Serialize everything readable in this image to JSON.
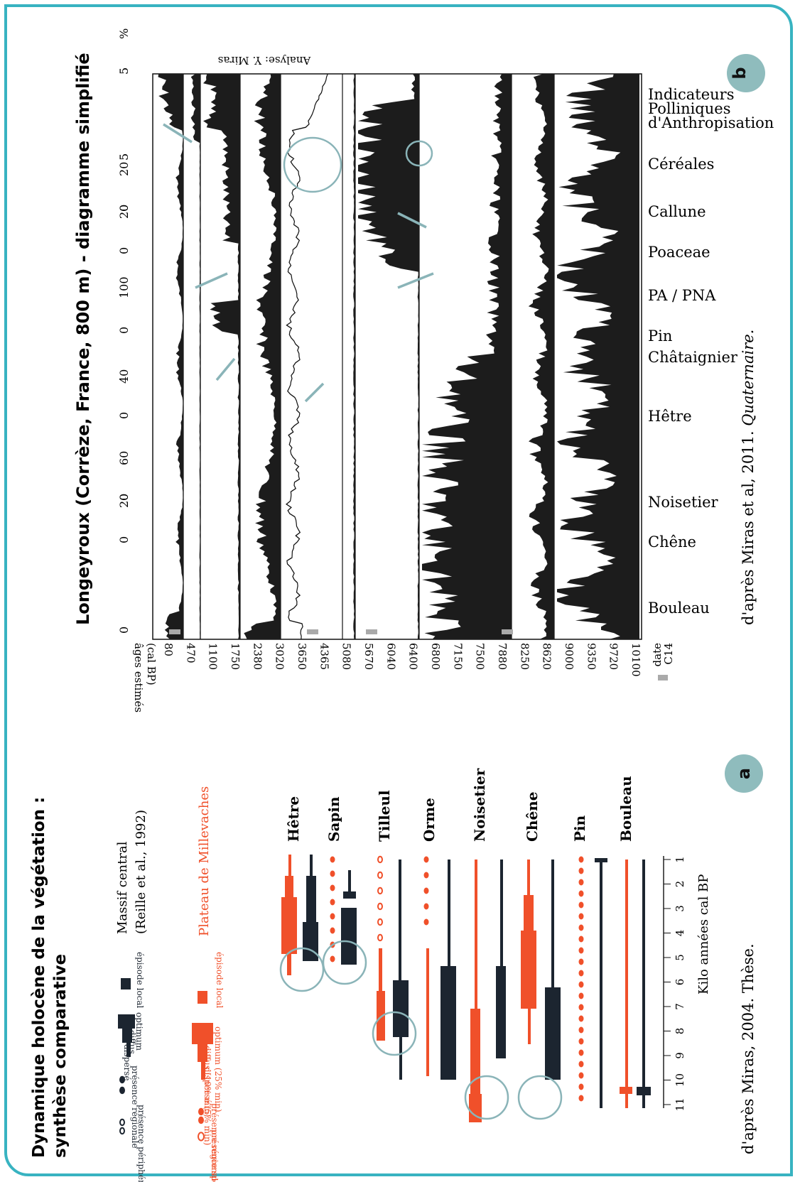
{
  "panel_b": {
    "badge": "b",
    "title": "Longeyroux (Corrèze, France, 800 m) - diagramme simplifié",
    "analyst": "Analyse: Y. Miras",
    "age_axis_label": [
      "âges estimés",
      "(cal BP)"
    ],
    "age_ticks": [
      "80",
      "470",
      "1100",
      "1750",
      "2380",
      "3020",
      "3650",
      "4365",
      "5080",
      "5670",
      "6040",
      "6400",
      "6800",
      "7150",
      "7500",
      "7880",
      "8250",
      "8620",
      "9000",
      "9350",
      "9720",
      "10100"
    ],
    "date_legend": [
      "date",
      "C14"
    ],
    "curves": [
      {
        "name": "Indicateurs Polliniques d'Anthropisation",
        "label_lines": [
          "Indicateurs",
          "Polliniques",
          "d'Anthropisation"
        ],
        "scale": [
          "5",
          "%"
        ]
      },
      {
        "name": "Céréales",
        "label_lines": [
          "Céréales"
        ],
        "scale": [
          "5"
        ]
      },
      {
        "name": "Callune",
        "label_lines": [
          "Callune"
        ],
        "scale": [
          "0",
          "20"
        ]
      },
      {
        "name": "Poaceae",
        "label_lines": [
          "Poaceae"
        ],
        "scale": [
          "0",
          "20"
        ]
      },
      {
        "name": "PA / PNA",
        "label_lines": [
          "PA / PNA"
        ],
        "scale": [
          "0",
          "100"
        ]
      },
      {
        "name": "Pin",
        "label_lines": [
          "Pin"
        ],
        "scale": []
      },
      {
        "name": "Châtaignier",
        "label_lines": [
          "Châtaignier"
        ],
        "scale": []
      },
      {
        "name": "Hêtre",
        "label_lines": [
          "Hêtre"
        ],
        "scale": [
          "0",
          "40"
        ]
      },
      {
        "name": "Noisetier",
        "label_lines": [
          "Noisetier"
        ],
        "scale": [
          "0",
          "60"
        ]
      },
      {
        "name": "Chêne",
        "label_lines": [
          "Chêne"
        ],
        "scale": [
          "0",
          "20"
        ]
      },
      {
        "name": "Bouleau",
        "label_lines": [
          "Bouleau"
        ],
        "scale": [
          "0"
        ]
      }
    ],
    "source": "d'après Miras et al, 2011.",
    "source_journal": "Quaternaire."
  },
  "panel_a": {
    "badge": "a",
    "title_lines": [
      "Dynamique holocène de la végétation :",
      "synthèse comparative"
    ],
    "massif_label_lines": [
      "Massif central",
      "(Reille et al., 1992)"
    ],
    "plateau_label": "Plateau de Millevaches",
    "legend_black": [
      "épisode local",
      "optimum",
      "diffus",
      "dispersé",
      "présence régionale",
      "présence périphérique"
    ],
    "legend_orange": [
      "épisode local",
      "optimum (25% min)",
      "diffus (10% min)",
      "dispersé (5% min)",
      "présence régionale",
      "présence sporadique"
    ],
    "taxa": [
      "Hêtre",
      "Sapin",
      "Tilleul",
      "Orme",
      "Noisetier",
      "Chêne",
      "Pin",
      "Bouleau"
    ],
    "kilo_label": "Kilo années cal BP",
    "kilo_ticks": [
      "1",
      "2",
      "3",
      "4",
      "5",
      "6",
      "7",
      "8",
      "9",
      "10",
      "11"
    ],
    "source": "d'après Miras, 2004. Thèse."
  },
  "colors": {
    "teal": "#38b3c1",
    "badge": "#8fbcbd",
    "orange": "#f0502a",
    "black": "#1c2530",
    "arrow": "#8ab4b8"
  }
}
